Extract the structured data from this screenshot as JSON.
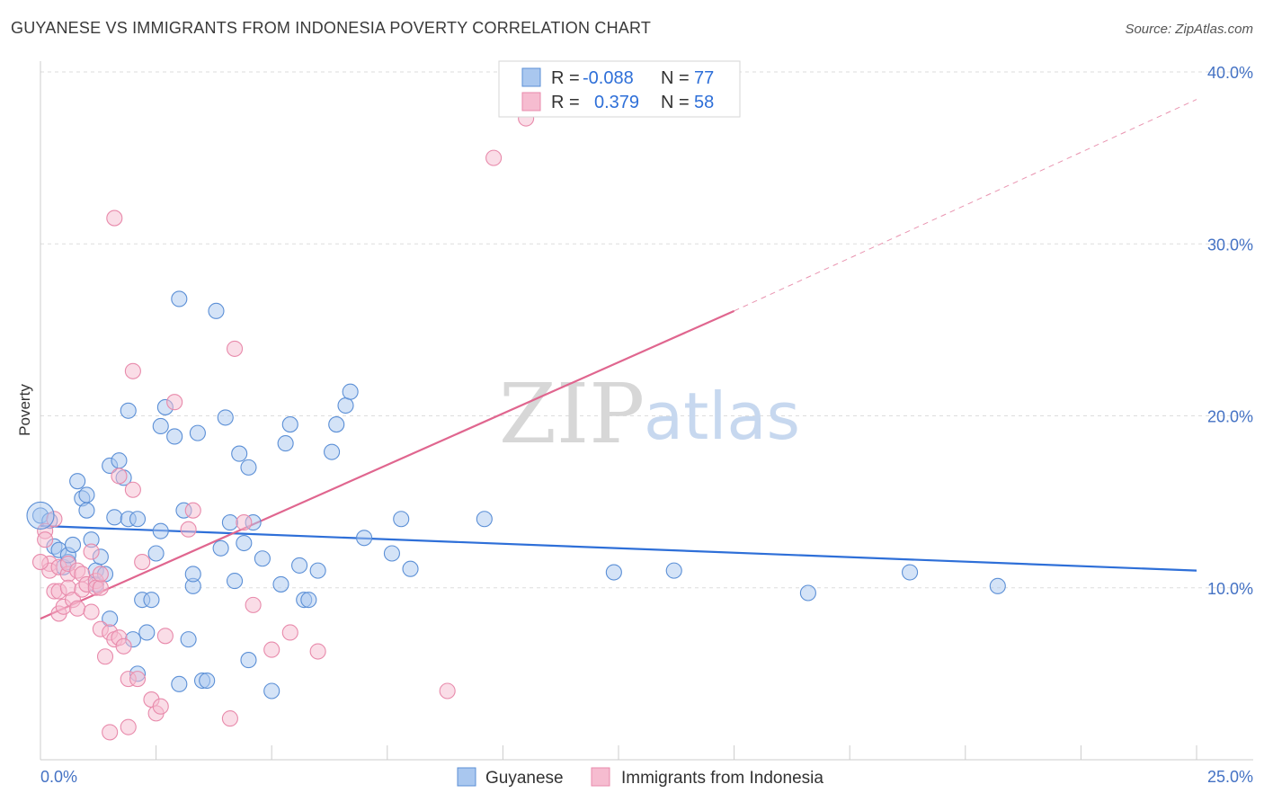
{
  "header": {
    "title": "GUYANESE VS IMMIGRANTS FROM INDONESIA POVERTY CORRELATION CHART",
    "source": "Source: ZipAtlas.com"
  },
  "watermark": {
    "zip": "ZIP",
    "atlas": "atlas"
  },
  "legend": {
    "rows": [
      {
        "r_label": "R =",
        "r_value": "-0.088",
        "n_label": "N =",
        "n_value": "77",
        "color": "#4472c4"
      },
      {
        "r_label": "R =",
        "r_value": "0.379",
        "n_label": "N =",
        "n_value": "58",
        "color": "#e8739a"
      }
    ]
  },
  "bottom_legend": {
    "series1": "Guyanese",
    "series2": "Immigrants from Indonesia"
  },
  "colors": {
    "blue_fill": "#a9c7ef",
    "blue_stroke": "#5b8fd6",
    "blue_line": "#2e6fd8",
    "pink_fill": "#f6bcd0",
    "pink_stroke": "#e88aab",
    "pink_line": "#e0668f",
    "tick_text": "#4472c4"
  },
  "chart_data": {
    "type": "scatter",
    "title": "GUYANESE VS IMMIGRANTS FROM INDONESIA POVERTY CORRELATION CHART",
    "xlabel": "",
    "ylabel": "Poverty",
    "xlim": [
      0,
      25
    ],
    "ylim": [
      0,
      40
    ],
    "x_ticks": [
      "0.0%",
      "25.0%"
    ],
    "y_ticks": [
      "10.0%",
      "20.0%",
      "30.0%",
      "40.0%"
    ],
    "y_tick_values": [
      10,
      20,
      30,
      40
    ],
    "grid": true,
    "legend_position": "top-center",
    "series": [
      {
        "name": "Guyanese",
        "R": -0.088,
        "N": 77,
        "trend": {
          "x": [
            0,
            25
          ],
          "y": [
            13.6,
            11.0
          ],
          "style": "solid"
        },
        "points": [
          [
            0.0,
            14.2
          ],
          [
            0.2,
            13.9
          ],
          [
            0.3,
            12.4
          ],
          [
            0.4,
            12.2
          ],
          [
            0.5,
            11.2
          ],
          [
            0.6,
            11.5
          ],
          [
            0.6,
            11.9
          ],
          [
            0.7,
            12.5
          ],
          [
            0.8,
            16.2
          ],
          [
            0.9,
            15.2
          ],
          [
            1.0,
            14.5
          ],
          [
            1.0,
            15.4
          ],
          [
            1.1,
            12.8
          ],
          [
            1.2,
            10.2
          ],
          [
            1.2,
            11.0
          ],
          [
            1.3,
            11.8
          ],
          [
            1.4,
            10.8
          ],
          [
            1.5,
            17.1
          ],
          [
            1.5,
            8.2
          ],
          [
            1.6,
            14.1
          ],
          [
            1.7,
            17.4
          ],
          [
            1.8,
            16.4
          ],
          [
            1.9,
            14.0
          ],
          [
            1.9,
            20.3
          ],
          [
            2.0,
            7.0
          ],
          [
            2.1,
            14.0
          ],
          [
            2.2,
            9.3
          ],
          [
            2.3,
            7.4
          ],
          [
            2.4,
            9.3
          ],
          [
            2.5,
            12.0
          ],
          [
            2.6,
            13.3
          ],
          [
            2.6,
            19.4
          ],
          [
            2.7,
            20.5
          ],
          [
            2.9,
            18.8
          ],
          [
            3.0,
            26.8
          ],
          [
            3.0,
            4.4
          ],
          [
            3.1,
            14.5
          ],
          [
            3.2,
            7.0
          ],
          [
            3.3,
            10.1
          ],
          [
            3.3,
            10.8
          ],
          [
            3.4,
            19.0
          ],
          [
            3.5,
            4.6
          ],
          [
            3.6,
            4.6
          ],
          [
            3.8,
            26.1
          ],
          [
            3.9,
            12.3
          ],
          [
            4.0,
            19.9
          ],
          [
            4.1,
            13.8
          ],
          [
            4.2,
            10.4
          ],
          [
            4.3,
            17.8
          ],
          [
            4.4,
            12.6
          ],
          [
            4.5,
            17.0
          ],
          [
            4.5,
            5.8
          ],
          [
            4.6,
            13.8
          ],
          [
            4.8,
            11.7
          ],
          [
            5.0,
            4.0
          ],
          [
            5.2,
            10.2
          ],
          [
            5.3,
            18.4
          ],
          [
            5.4,
            19.5
          ],
          [
            5.6,
            11.3
          ],
          [
            5.7,
            9.3
          ],
          [
            5.8,
            9.3
          ],
          [
            6.0,
            11.0
          ],
          [
            6.3,
            17.9
          ],
          [
            6.4,
            19.5
          ],
          [
            6.6,
            20.6
          ],
          [
            6.7,
            21.4
          ],
          [
            7.0,
            12.9
          ],
          [
            7.6,
            12.0
          ],
          [
            7.8,
            14.0
          ],
          [
            8.0,
            11.1
          ],
          [
            9.6,
            14.0
          ],
          [
            12.4,
            10.9
          ],
          [
            13.7,
            11.0
          ],
          [
            16.6,
            9.7
          ],
          [
            18.8,
            10.9
          ],
          [
            20.7,
            10.1
          ],
          [
            2.1,
            5.0
          ]
        ]
      },
      {
        "name": "Immigrants from Indonesia",
        "R": 0.379,
        "N": 58,
        "trend": {
          "x": [
            0,
            15,
            25
          ],
          "y": [
            8.2,
            26.1,
            38.4
          ],
          "style": "solid-then-dashed"
        },
        "points": [
          [
            0.1,
            13.3
          ],
          [
            0.1,
            12.8
          ],
          [
            0.2,
            11.4
          ],
          [
            0.2,
            11.0
          ],
          [
            0.3,
            14.0
          ],
          [
            0.3,
            9.8
          ],
          [
            0.4,
            9.8
          ],
          [
            0.4,
            11.2
          ],
          [
            0.4,
            8.5
          ],
          [
            0.5,
            8.9
          ],
          [
            0.6,
            10.8
          ],
          [
            0.6,
            11.4
          ],
          [
            0.6,
            10.0
          ],
          [
            0.7,
            9.3
          ],
          [
            0.8,
            11.0
          ],
          [
            0.8,
            8.8
          ],
          [
            0.9,
            10.8
          ],
          [
            0.9,
            9.9
          ],
          [
            1.0,
            10.2
          ],
          [
            1.1,
            12.1
          ],
          [
            1.1,
            8.6
          ],
          [
            1.2,
            10.4
          ],
          [
            1.2,
            10.0
          ],
          [
            1.3,
            10.0
          ],
          [
            1.3,
            10.8
          ],
          [
            1.3,
            7.6
          ],
          [
            1.4,
            6.0
          ],
          [
            1.5,
            7.4
          ],
          [
            1.5,
            1.6
          ],
          [
            1.6,
            31.5
          ],
          [
            1.6,
            7.0
          ],
          [
            1.7,
            16.5
          ],
          [
            1.7,
            7.1
          ],
          [
            1.8,
            6.6
          ],
          [
            1.9,
            1.9
          ],
          [
            1.9,
            4.7
          ],
          [
            2.0,
            22.6
          ],
          [
            2.0,
            15.7
          ],
          [
            2.1,
            4.7
          ],
          [
            2.2,
            11.5
          ],
          [
            2.4,
            3.5
          ],
          [
            2.5,
            2.7
          ],
          [
            2.6,
            3.1
          ],
          [
            2.7,
            7.2
          ],
          [
            2.9,
            20.8
          ],
          [
            3.2,
            13.4
          ],
          [
            3.3,
            14.5
          ],
          [
            4.1,
            2.4
          ],
          [
            4.2,
            23.9
          ],
          [
            4.4,
            13.8
          ],
          [
            4.6,
            9.0
          ],
          [
            5.0,
            6.4
          ],
          [
            5.4,
            7.4
          ],
          [
            6.0,
            6.3
          ],
          [
            8.8,
            4.0
          ],
          [
            9.8,
            35.0
          ],
          [
            10.5,
            37.3
          ],
          [
            0.0,
            11.5
          ]
        ]
      }
    ]
  }
}
